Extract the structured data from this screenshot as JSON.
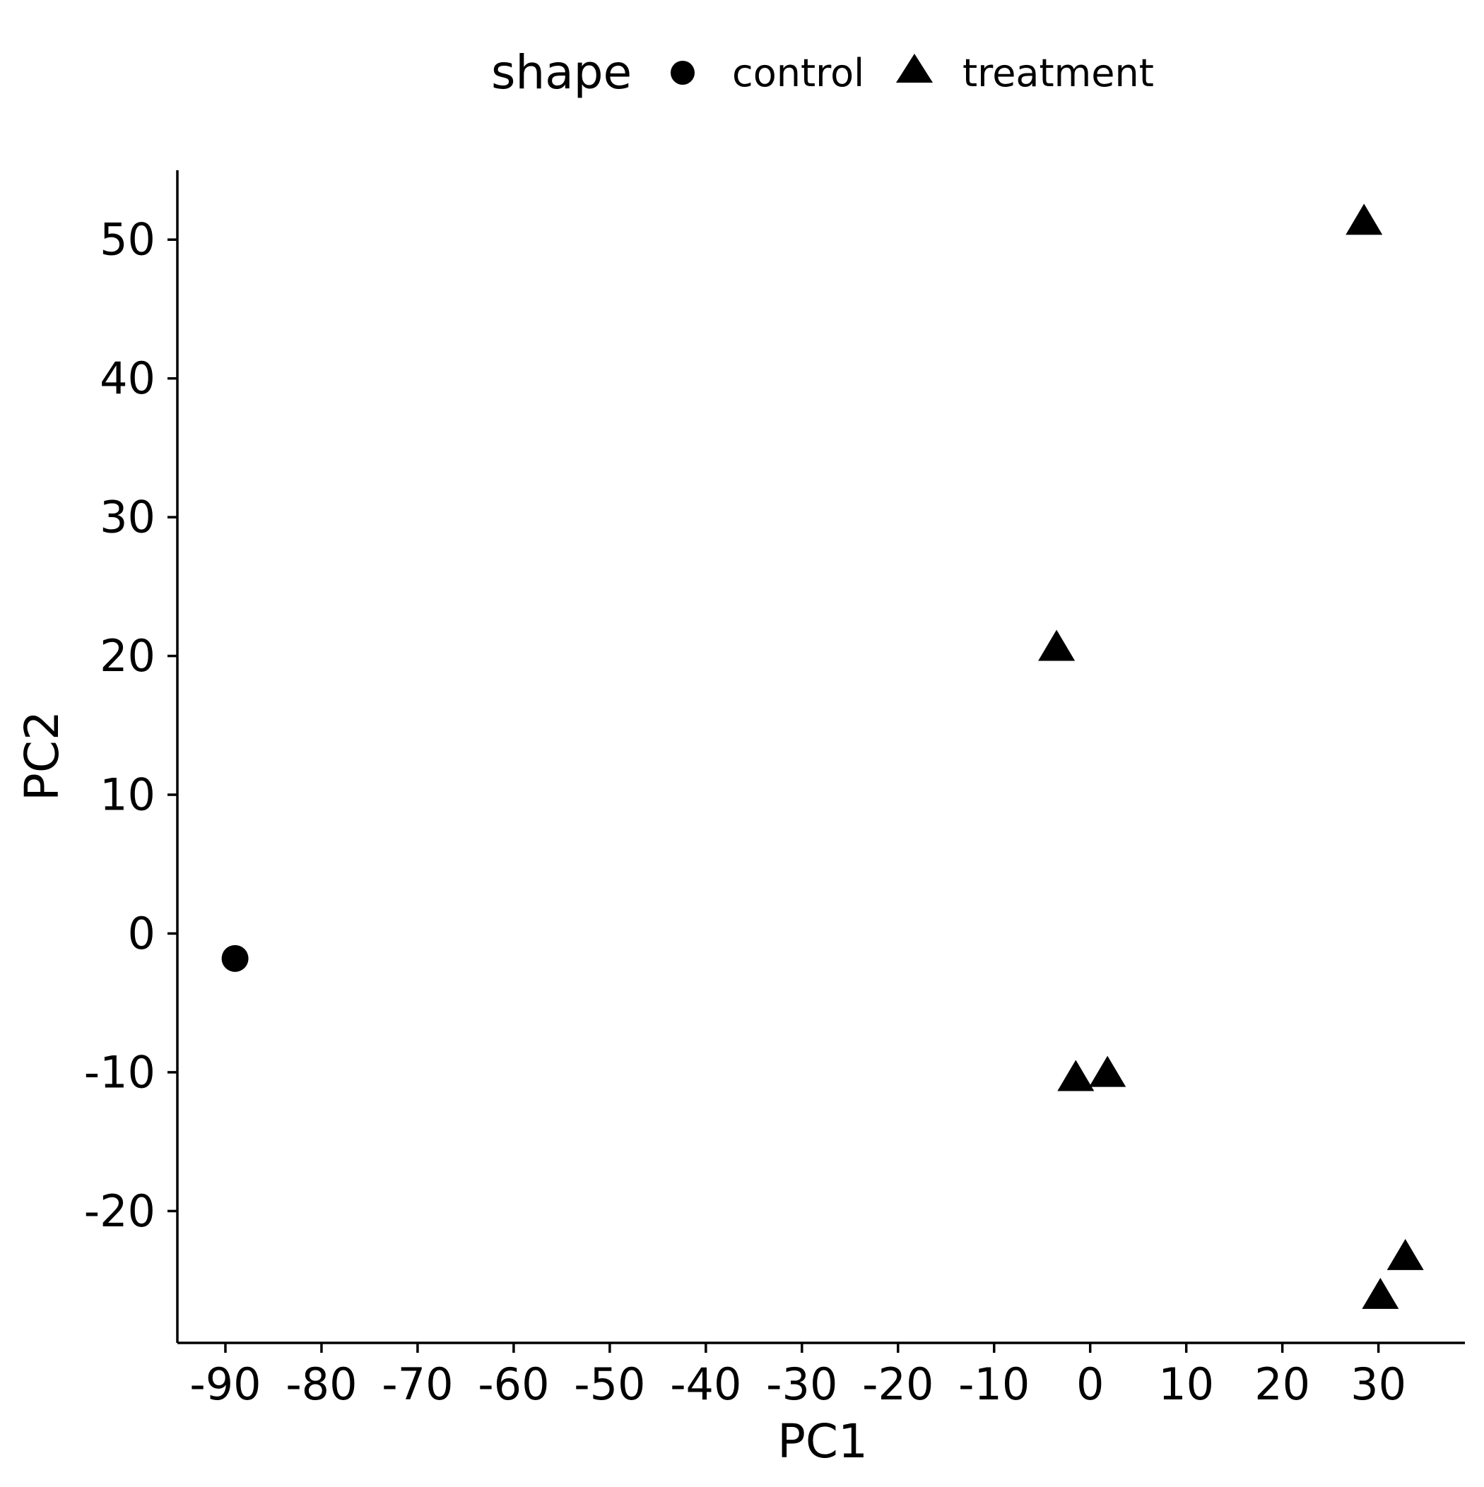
{
  "chart_data": {
    "type": "scatter",
    "title": "",
    "xlabel": "PC1",
    "ylabel": "PC2",
    "xlim": [
      -95,
      39
    ],
    "ylim": [
      -29.5,
      55
    ],
    "x_ticks": [
      -90,
      -80,
      -70,
      -60,
      -50,
      -40,
      -30,
      -20,
      -10,
      0,
      10,
      20,
      30
    ],
    "y_ticks": [
      -20,
      -10,
      0,
      10,
      20,
      30,
      40,
      50
    ],
    "grid": false,
    "legend": {
      "title": "shape",
      "placement": "top",
      "entries": [
        {
          "label": "control",
          "shape": "circle"
        },
        {
          "label": "treatment",
          "shape": "triangle"
        }
      ]
    },
    "series": [
      {
        "name": "control",
        "shape": "circle",
        "color": "#000000",
        "points": [
          [
            -89,
            -1.8
          ]
        ]
      },
      {
        "name": "treatment",
        "shape": "triangle",
        "color": "#000000",
        "points": [
          [
            28.5,
            51.2
          ],
          [
            -3.5,
            20.5
          ],
          [
            -1.5,
            -10.5
          ],
          [
            1.8,
            -10.2
          ],
          [
            32.8,
            -23.4
          ],
          [
            30.2,
            -26.2
          ]
        ]
      }
    ]
  }
}
